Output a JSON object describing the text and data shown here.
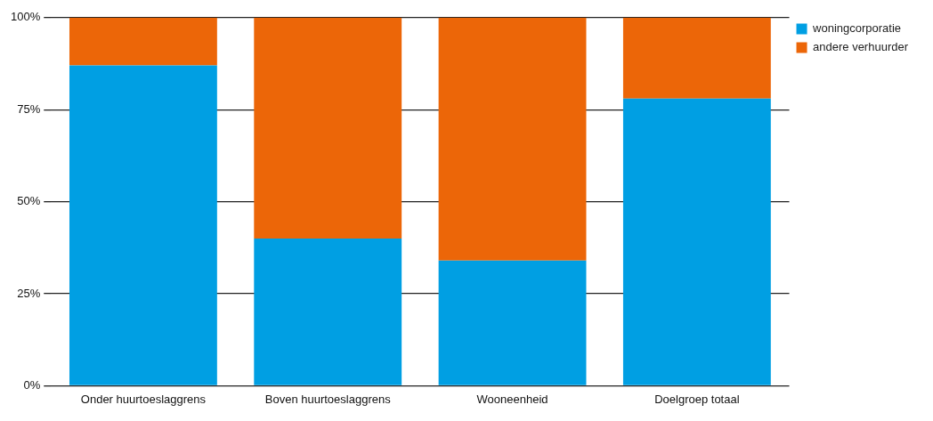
{
  "chart_data": {
    "type": "bar",
    "stacked": true,
    "categories": [
      "Onder huurtoeslaggrens",
      "Boven huurtoeslaggrens",
      "Wooneenheid",
      "Doelgroep totaal"
    ],
    "series": [
      {
        "name": "woningcorporatie",
        "color": "#009fe3",
        "values": [
          87,
          40,
          34,
          78
        ]
      },
      {
        "name": "andere verhuurder",
        "color": "#ec6608",
        "values": [
          13,
          60,
          66,
          22
        ]
      }
    ],
    "ylim": [
      0,
      100
    ],
    "yticks": [
      {
        "value": 0,
        "label": "0%"
      },
      {
        "value": 25,
        "label": "25%"
      },
      {
        "value": 50,
        "label": "50%"
      },
      {
        "value": 75,
        "label": "75%"
      },
      {
        "value": 100,
        "label": "100%"
      }
    ],
    "grid": "y",
    "legend": "top right"
  }
}
